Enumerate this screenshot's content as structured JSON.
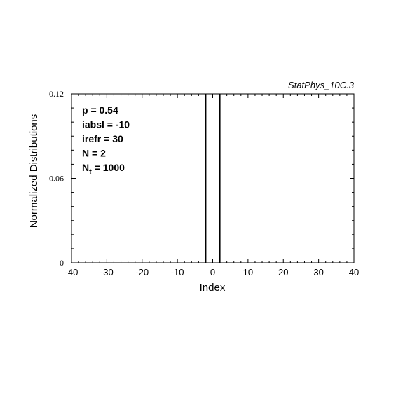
{
  "chart_data": {
    "type": "bar",
    "title": "StatPhys_10C.3",
    "xlabel": "Index",
    "ylabel": "Normalized Distributions",
    "xlim": [
      -40,
      40
    ],
    "ylim": [
      0,
      0.12
    ],
    "x_ticks": [
      -40,
      -30,
      -20,
      -10,
      0,
      10,
      20,
      30,
      40
    ],
    "x_tick_labels": [
      "-40",
      "-30",
      "-20",
      "-10",
      "0",
      "10",
      "20",
      "30",
      "40"
    ],
    "y_ticks": [
      0,
      0.06,
      0.12
    ],
    "y_tick_labels": [
      "0",
      "0.06",
      "0.12"
    ],
    "grid": false,
    "series": [
      {
        "x": [
          -2,
          2
        ],
        "values": [
          0.12,
          0.12
        ]
      }
    ],
    "annotations": [
      {
        "text": "p = 0.54"
      },
      {
        "text": "iabsl = -10"
      },
      {
        "text": "irefr = 30"
      },
      {
        "text": "N = 2"
      },
      {
        "text": "N",
        "sub": "t",
        "rest": " = 1000"
      }
    ]
  }
}
